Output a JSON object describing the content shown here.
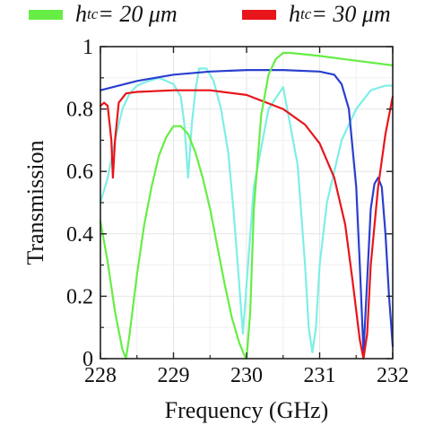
{
  "legend": [
    {
      "symbol": "h",
      "subscript": "tc",
      "rest": "= 20 μm",
      "color": "#66ee44"
    },
    {
      "symbol": "h",
      "subscript": "tc",
      "rest": "= 30 μm",
      "color": "#e8151b"
    }
  ],
  "chart_data": {
    "type": "line",
    "title": "",
    "xlabel": "Frequency (GHz)",
    "ylabel": "Transmission",
    "xlim": [
      228,
      232
    ],
    "ylim": [
      0,
      1
    ],
    "xticks": [
      "228",
      "229",
      "230",
      "231",
      "232"
    ],
    "yticks": [
      "0",
      "0.2",
      "0.4",
      "0.6",
      "0.8",
      "1"
    ],
    "grid": true,
    "legend_position": "top",
    "series": [
      {
        "name": "h_tc = 20 μm",
        "color": "#66ee44",
        "x": [
          228.0,
          228.1,
          228.2,
          228.3,
          228.35,
          228.4,
          228.5,
          228.6,
          228.7,
          228.8,
          228.9,
          229.0,
          229.1,
          229.2,
          229.3,
          229.4,
          229.5,
          229.6,
          229.7,
          229.8,
          229.9,
          229.97,
          230.0,
          230.05,
          230.1,
          230.2,
          230.3,
          230.4,
          230.5,
          230.6,
          231.0,
          231.5,
          232.0
        ],
        "y": [
          0.44,
          0.31,
          0.15,
          0.03,
          0.0,
          0.08,
          0.27,
          0.43,
          0.55,
          0.65,
          0.71,
          0.745,
          0.745,
          0.72,
          0.66,
          0.58,
          0.48,
          0.36,
          0.24,
          0.13,
          0.05,
          0.01,
          0.0,
          0.15,
          0.48,
          0.78,
          0.91,
          0.96,
          0.98,
          0.98,
          0.97,
          0.955,
          0.94
        ]
      },
      {
        "name": "h_tc = 30 μm",
        "color": "#e8151b",
        "x": [
          228.0,
          228.05,
          228.1,
          228.15,
          228.17,
          228.2,
          228.25,
          228.35,
          228.5,
          229.0,
          229.5,
          230.0,
          230.5,
          230.8,
          231.0,
          231.2,
          231.35,
          231.45,
          231.55,
          231.6,
          231.65,
          231.7,
          231.8,
          231.9,
          232.0
        ],
        "y": [
          0.81,
          0.82,
          0.81,
          0.7,
          0.58,
          0.7,
          0.82,
          0.85,
          0.855,
          0.86,
          0.86,
          0.845,
          0.8,
          0.75,
          0.69,
          0.58,
          0.43,
          0.25,
          0.06,
          0.0,
          0.08,
          0.3,
          0.55,
          0.72,
          0.84
        ]
      },
      {
        "name": "",
        "color": "#2a3fcf",
        "x": [
          228.0,
          228.5,
          229.0,
          229.5,
          230.0,
          230.5,
          231.0,
          231.2,
          231.3,
          231.4,
          231.5,
          231.55,
          231.6,
          231.65,
          231.7,
          231.75,
          231.8,
          231.85,
          231.9,
          231.95,
          232.0
        ],
        "y": [
          0.86,
          0.89,
          0.91,
          0.92,
          0.925,
          0.925,
          0.92,
          0.91,
          0.88,
          0.8,
          0.55,
          0.3,
          0.02,
          0.25,
          0.48,
          0.56,
          0.58,
          0.55,
          0.4,
          0.2,
          0.04
        ]
      },
      {
        "name": "",
        "color": "#7eefe6",
        "x": [
          228.0,
          228.1,
          228.2,
          228.3,
          228.4,
          228.5,
          228.6,
          228.8,
          229.0,
          229.1,
          229.15,
          229.2,
          229.25,
          229.3,
          229.35,
          229.45,
          229.55,
          229.65,
          229.75,
          229.82,
          229.88,
          229.95,
          230.1,
          230.3,
          230.5,
          230.7,
          230.8,
          230.85,
          230.9,
          230.95,
          231.0,
          231.1,
          231.3,
          231.5,
          231.7,
          231.9,
          232.0
        ],
        "y": [
          0.5,
          0.58,
          0.7,
          0.8,
          0.85,
          0.875,
          0.885,
          0.9,
          0.88,
          0.84,
          0.75,
          0.58,
          0.75,
          0.86,
          0.93,
          0.93,
          0.89,
          0.8,
          0.66,
          0.48,
          0.3,
          0.08,
          0.55,
          0.8,
          0.87,
          0.62,
          0.3,
          0.1,
          0.02,
          0.1,
          0.3,
          0.5,
          0.7,
          0.8,
          0.86,
          0.875,
          0.875
        ]
      }
    ]
  }
}
